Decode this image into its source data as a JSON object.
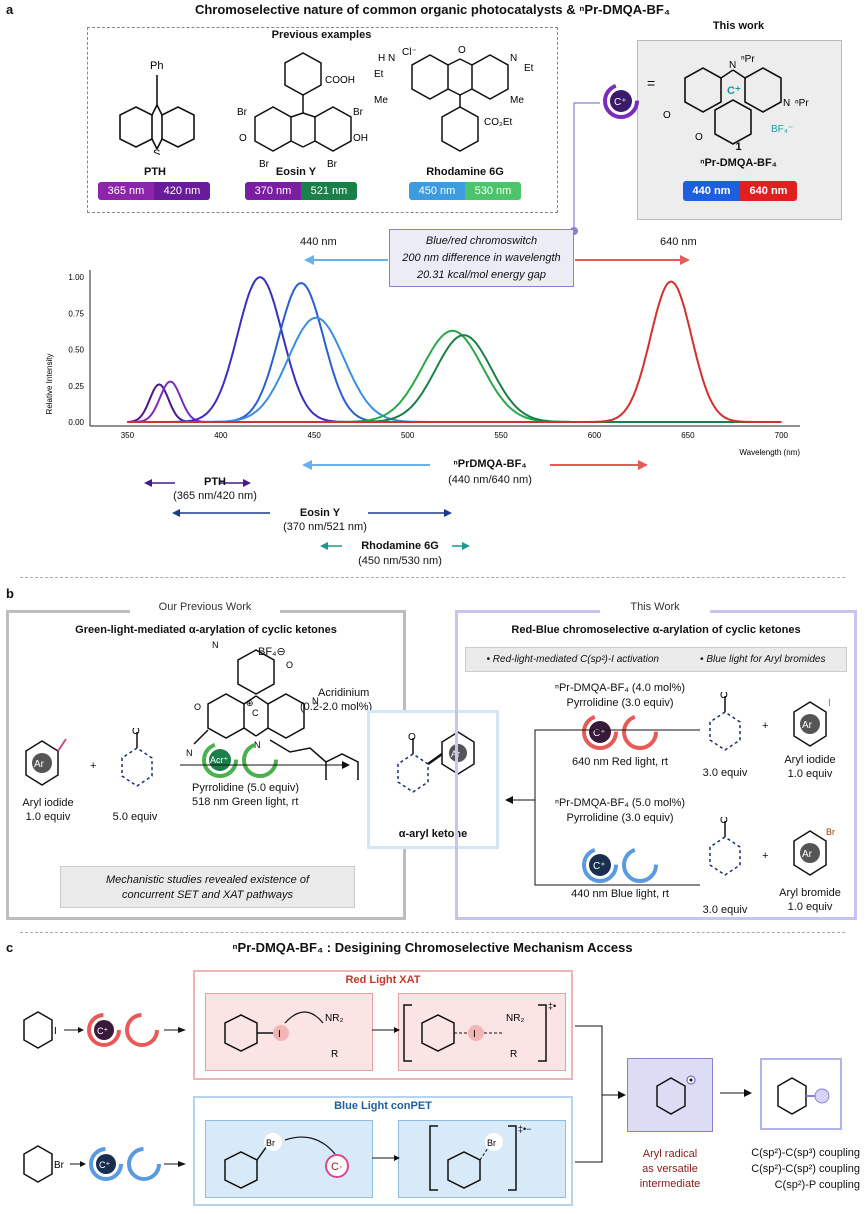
{
  "panel_a": {
    "letter": "a",
    "title": "Chromoselective nature of common organic photocatalysts & ⁿPr-DMQA-BF₄",
    "previous_title": "Previous examples",
    "catalysts": [
      {
        "name": "PTH",
        "label": "Ph",
        "w1": "365 nm",
        "w2": "420 nm",
        "c1": "#8e24aa",
        "c2": "#6a1b9a"
      },
      {
        "name": "Eosin Y",
        "w1": "370 nm",
        "w2": "521 nm",
        "c1": "#7b1fa2",
        "c2": "#1b7f4a"
      },
      {
        "name": "Rhodamine 6G",
        "w1": "450 nm",
        "w2": "530 nm",
        "c1": "#3d9be0",
        "c2": "#4cc46a"
      }
    ],
    "this_work_title": "This work",
    "compound_number": "1",
    "compound_name": "ⁿPr-DMQA-BF₄",
    "this_w1": "440 nm",
    "this_w2": "640 nm",
    "struct_labels": {
      "npr_top": "ⁿPr",
      "npr_side": "ⁿPr",
      "bf4": "BF₄⁻",
      "cplus": "C⁺",
      "eq": "="
    },
    "callout": [
      "Blue/red chromoswitch",
      "200 nm difference in wavelength",
      "20.31 kcal/mol energy gap"
    ],
    "arrow_left_label": "440 nm",
    "arrow_right_label": "640 nm",
    "ranges": [
      {
        "name": "ⁿPrDMQA-BF₄",
        "sub": "(440 nm/640 nm)"
      },
      {
        "name": "PTH",
        "sub": "(365 nm/420 nm)"
      },
      {
        "name": "Eosin Y",
        "sub": "(370 nm/521 nm)"
      },
      {
        "name": "Rhodamine 6G",
        "sub": "(450 nm/530 nm)"
      }
    ]
  },
  "chart_data": {
    "type": "line",
    "xlabel": "Wavelength (nm)",
    "ylabel": "Relative Intensity",
    "xlim": [
      330,
      710
    ],
    "ylim": [
      0,
      1.05
    ],
    "xticks": [
      350,
      400,
      450,
      500,
      550,
      600,
      650,
      700
    ],
    "yticks": [
      "0.00",
      "0.25",
      "0.50",
      "0.75",
      "1.00"
    ],
    "series": [
      {
        "peak": 367,
        "height": 0.26,
        "sigma": 5,
        "color": "#4a1a8c"
      },
      {
        "peak": 373,
        "height": 0.28,
        "sigma": 5.5,
        "color": "#7b2cbf"
      },
      {
        "peak": 421,
        "height": 1.0,
        "sigma": 12,
        "color": "#3b2fbf"
      },
      {
        "peak": 443,
        "height": 0.96,
        "sigma": 12,
        "color": "#2a5fd0"
      },
      {
        "peak": 451,
        "height": 0.72,
        "sigma": 15,
        "color": "#3c8ee0"
      },
      {
        "peak": 524,
        "height": 0.63,
        "sigma": 16,
        "color": "#2aa84a"
      },
      {
        "peak": 530,
        "height": 0.6,
        "sigma": 15,
        "color": "#1b7f4a"
      },
      {
        "peak": 641,
        "height": 0.97,
        "sigma": 11,
        "color": "#d32f2f"
      }
    ]
  },
  "panel_b": {
    "letter": "b",
    "prev_tag": "Our Previous Work",
    "prev_title": "Green-light-mediated α-arylation of cyclic ketones",
    "acridinium": "Acridinium",
    "acridinium_load": "(0.2-2.0 mol%)",
    "bf4": "BF₄⊖",
    "acr_label": "Acr⁺",
    "aryl_iodide": "Aryl iodide",
    "aryl_iodide_eq": "1.0 equiv",
    "ketone_eq": "5.0 equiv",
    "plus": "+",
    "pyrrolidine": "Pyrrolidine (5.0 equiv)",
    "green_cond": "518 nm Green light, rt",
    "mech_note": [
      "Mechanistic studies revealed existence of",
      "concurrent SET and XAT pathways"
    ],
    "product": "α-aryl ketone",
    "this_tag": "This Work",
    "this_title": "Red-Blue chromoselective α-arylation of cyclic ketones",
    "bullets": [
      "• Red-light-mediated C(sp²)-I activation",
      "• Blue light for Aryl bromides"
    ],
    "red_cat": "ⁿPr-DMQA-BF₄ (4.0 mol%)",
    "red_pyr": "Pyrrolidine (3.0 equiv)",
    "red_cond": "640 nm Red light, rt",
    "red_ketone_eq": "3.0 equiv",
    "red_aryl": "Aryl iodide",
    "red_aryl_eq": "1.0 equiv",
    "blue_cat": "ⁿPr-DMQA-BF₄ (5.0 mol%)",
    "blue_pyr": "Pyrrolidine (3.0 equiv)",
    "blue_cond": "440 nm Blue light, rt",
    "blue_ketone_eq": "3.0 equiv",
    "blue_aryl": "Aryl bromide",
    "blue_aryl_eq": "1.0 equiv",
    "ar": "Ar",
    "i": "I",
    "br": "Br"
  },
  "panel_c": {
    "letter": "c",
    "title": "ⁿPr-DMQA-BF₄ : Desigining Chromoselective Mechanism Access",
    "red_title": "Red Light XAT",
    "blue_title": "Blue Light conPET",
    "nr2": "NR₂",
    "r": "R",
    "i": "I",
    "br": "Br",
    "dagger_red": "‡•",
    "dagger_blue": "‡•−",
    "radical_label": [
      "Aryl radical",
      "as versatile",
      "intermediate"
    ],
    "couplings": [
      "C(sp²)-C(sp³) coupling",
      "C(sp²)-C(sp²) coupling",
      "C(sp²)-P coupling"
    ]
  }
}
